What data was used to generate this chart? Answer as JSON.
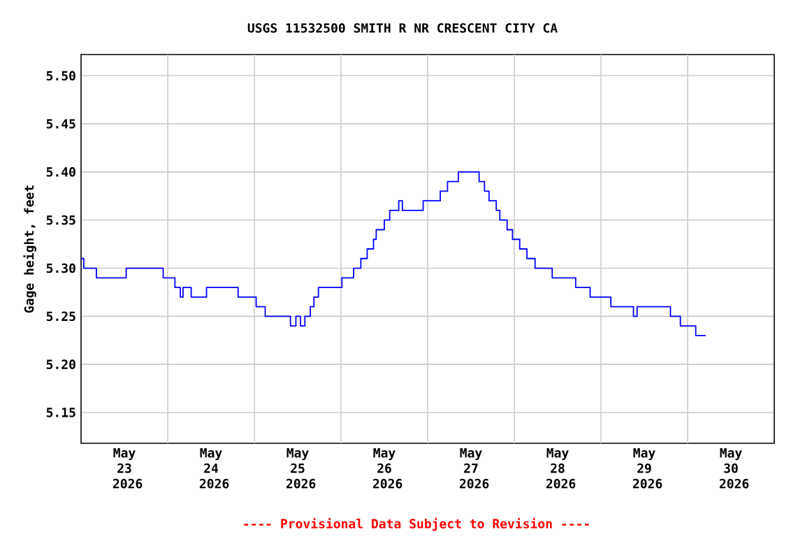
{
  "chart_data": {
    "type": "step",
    "title": "USGS 11532500 SMITH R NR CRESCENT CITY CA",
    "ylabel": "Gage height, feet",
    "annotations": [
      "---- Provisional Data Subject to Revision ----"
    ],
    "x": [
      "2026-05-23T00:00",
      "2026-05-23T00:45",
      "2026-05-23T04:15",
      "2026-05-23T12:30",
      "2026-05-23T22:45",
      "2026-05-24T02:00",
      "2026-05-24T03:30",
      "2026-05-24T04:15",
      "2026-05-24T06:30",
      "2026-05-24T10:45",
      "2026-05-24T19:30",
      "2026-05-25T00:30",
      "2026-05-25T03:00",
      "2026-05-25T10:00",
      "2026-05-25T11:30",
      "2026-05-25T12:45",
      "2026-05-25T14:00",
      "2026-05-25T15:30",
      "2026-05-25T16:30",
      "2026-05-25T17:45",
      "2026-05-26T00:15",
      "2026-05-26T03:30",
      "2026-05-26T05:30",
      "2026-05-26T07:15",
      "2026-05-26T09:00",
      "2026-05-26T09:45",
      "2026-05-26T12:00",
      "2026-05-26T13:30",
      "2026-05-26T16:00",
      "2026-05-26T17:00",
      "2026-05-26T22:45",
      "2026-05-27T03:30",
      "2026-05-27T05:30",
      "2026-05-27T08:30",
      "2026-05-27T14:15",
      "2026-05-27T15:45",
      "2026-05-27T17:00",
      "2026-05-27T19:00",
      "2026-05-27T20:00",
      "2026-05-27T22:00",
      "2026-05-27T23:30",
      "2026-05-28T01:30",
      "2026-05-28T03:30",
      "2026-05-28T05:45",
      "2026-05-28T10:30",
      "2026-05-28T17:00",
      "2026-05-28T21:00",
      "2026-05-29T02:45",
      "2026-05-29T09:00",
      "2026-05-29T10:00",
      "2026-05-29T19:15",
      "2026-05-29T22:00",
      "2026-05-30T02:15",
      "2026-05-30T05:00"
    ],
    "series": [
      {
        "color": "#0000ff",
        "values": [
          5.31,
          5.3,
          5.29,
          5.3,
          5.29,
          5.28,
          5.27,
          5.28,
          5.27,
          5.28,
          5.27,
          5.26,
          5.25,
          5.24,
          5.25,
          5.24,
          5.25,
          5.26,
          5.27,
          5.28,
          5.29,
          5.3,
          5.31,
          5.32,
          5.33,
          5.34,
          5.35,
          5.36,
          5.37,
          5.36,
          5.37,
          5.38,
          5.39,
          5.4,
          5.39,
          5.38,
          5.37,
          5.36,
          5.35,
          5.34,
          5.33,
          5.32,
          5.31,
          5.3,
          5.29,
          5.28,
          5.27,
          5.26,
          5.25,
          5.26,
          5.25,
          5.24,
          5.23,
          5.23
        ]
      }
    ],
    "xlim": [
      "2026-05-23T00:00",
      "2026-05-31T00:00"
    ],
    "xticks": [
      {
        "value": "2026-05-23T12:00",
        "label": "May 23 2026"
      },
      {
        "value": "2026-05-24T12:00",
        "label": "May 24 2026"
      },
      {
        "value": "2026-05-25T12:00",
        "label": "May 25 2026"
      },
      {
        "value": "2026-05-26T12:00",
        "label": "May 26 2026"
      },
      {
        "value": "2026-05-27T12:00",
        "label": "May 27 2026"
      },
      {
        "value": "2026-05-28T12:00",
        "label": "May 28 2026"
      },
      {
        "value": "2026-05-29T12:00",
        "label": "May 29 2026"
      },
      {
        "value": "2026-05-30T12:00",
        "label": "May 30 2026"
      },
      {
        "value": "2026-05-24T00:00",
        "label": null
      },
      {
        "value": "2026-05-25T00:00",
        "label": null
      },
      {
        "value": "2026-05-26T00:00",
        "label": null
      },
      {
        "value": "2026-05-27T00:00",
        "label": null
      },
      {
        "value": "2026-05-28T00:00",
        "label": null
      },
      {
        "value": "2026-05-29T00:00",
        "label": null
      },
      {
        "value": "2026-05-30T00:00",
        "label": null
      }
    ],
    "ylim": [
      5.118,
      5.522
    ],
    "yticks": [
      {
        "value": 5.15,
        "label": "5.15"
      },
      {
        "value": 5.2,
        "label": "5.20"
      },
      {
        "value": 5.25,
        "label": "5.25"
      },
      {
        "value": 5.3,
        "label": "5.30"
      },
      {
        "value": 5.35,
        "label": "5.35"
      },
      {
        "value": 5.4,
        "label": "5.40"
      },
      {
        "value": 5.45,
        "label": "5.45"
      },
      {
        "value": 5.5,
        "label": "5.50"
      }
    ],
    "grid": true,
    "marker": "none",
    "line_style": "solid"
  }
}
